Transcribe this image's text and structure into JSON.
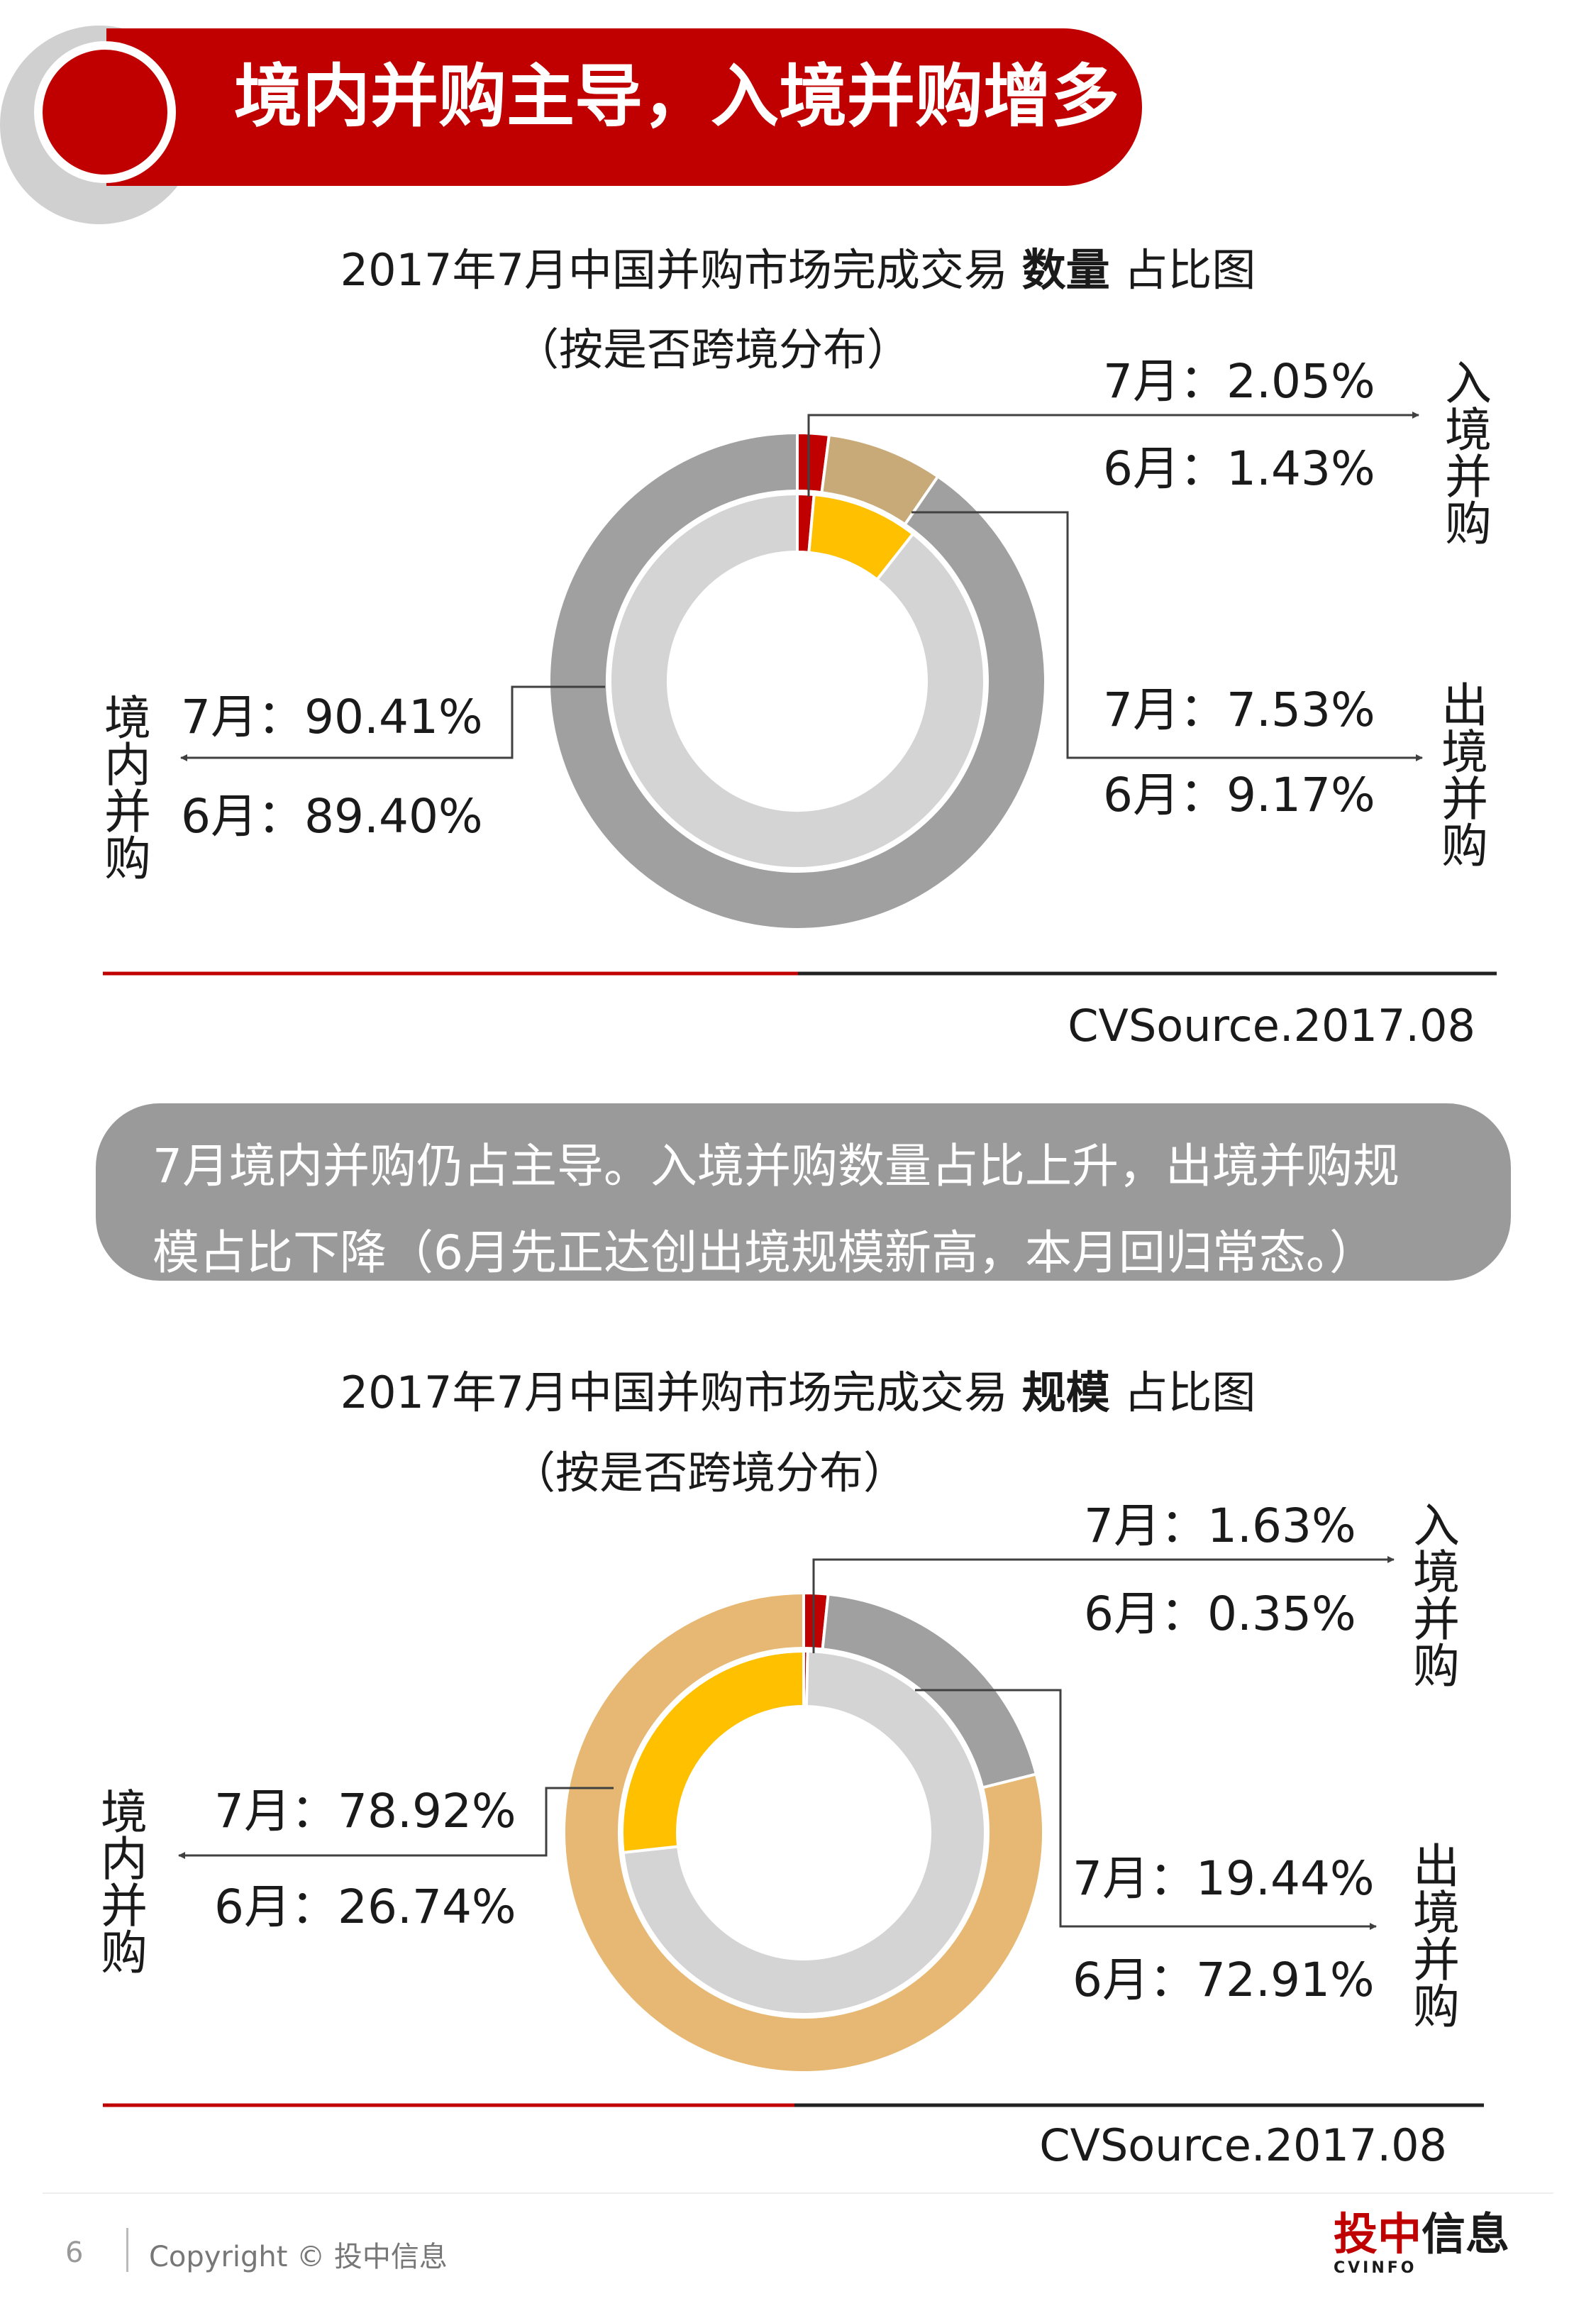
{
  "header": {
    "title": "境内并购主导，入境并购增多"
  },
  "charts": [
    {
      "title_prefix": "2017年7月中国并购市场完成交易 ",
      "title_bold": "数量",
      "title_suffix": " 占比图",
      "subtitle": "（按是否跨境分布）",
      "inbound": {
        "label": "入境并购",
        "jul": "7月：2.05%",
        "jun": "6月：1.43%"
      },
      "outbound": {
        "label": "出境并购",
        "jul": "7月：7.53%",
        "jun": "6月：9.17%"
      },
      "domestic": {
        "label": "境内并购",
        "jul": "7月：90.41%",
        "jun": "6月：89.40%"
      },
      "source": "CVSource.2017.08"
    },
    {
      "title_prefix": "2017年7月中国并购市场完成交易 ",
      "title_bold": "规模",
      "title_suffix": " 占比图",
      "subtitle": "（按是否跨境分布）",
      "inbound": {
        "label": "入境并购",
        "jul": "7月：1.63%",
        "jun": "6月：0.35%"
      },
      "outbound": {
        "label": "出境并购",
        "jul": "7月：19.44%",
        "jun": "6月：72.91%"
      },
      "domestic": {
        "label": "境内并购",
        "jul": "7月：78.92%",
        "jun": "6月：26.74%"
      },
      "source": "CVSource.2017.08"
    }
  ],
  "chart_data": [
    {
      "type": "pie",
      "variant": "double-donut",
      "rings": [
        {
          "name": "6月",
          "position": "inner",
          "values": [
            1.43,
            9.17,
            89.4
          ],
          "colors": [
            "#c00000",
            "#ffc000",
            "#d4d4d4"
          ]
        },
        {
          "name": "7月",
          "position": "outer",
          "values": [
            2.05,
            7.53,
            90.41
          ],
          "colors": [
            "#c00000",
            "#c8aa78",
            "#a0a0a0"
          ]
        }
      ],
      "categories": [
        "入境并购",
        "出境并购",
        "境内并购"
      ]
    },
    {
      "type": "pie",
      "variant": "double-donut",
      "rings": [
        {
          "name": "6月",
          "position": "inner",
          "values": [
            0.35,
            72.91,
            26.74
          ],
          "colors": [
            "#c00000",
            "#d4d4d4",
            "#ffc000"
          ]
        },
        {
          "name": "7月",
          "position": "outer",
          "values": [
            1.63,
            19.44,
            78.92
          ],
          "colors": [
            "#c00000",
            "#a0a0a0",
            "#e6b873"
          ]
        }
      ],
      "categories": [
        "入境并购",
        "出境并购",
        "境内并购"
      ]
    }
  ],
  "summary": {
    "line1": "7月境内并购仍占主导。入境并购数量占比上升，出境并购规",
    "line2": "模占比下降（6月先正达创出境规模新高，本月回归常态。）"
  },
  "footer": {
    "page": "6",
    "copyright": "Copyright © 投中信息",
    "logo_red": "投中",
    "logo_black": "信息",
    "logo_sub": "CVINFO"
  }
}
